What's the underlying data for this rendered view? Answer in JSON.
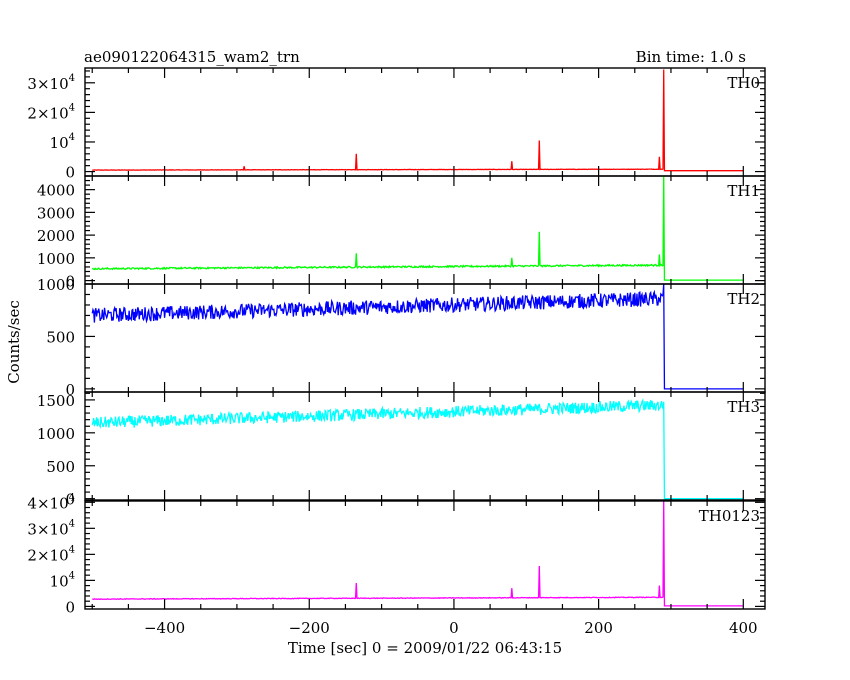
{
  "header": {
    "title": "ae090122064315_wam2_trn",
    "bin_time": "Bin time: 1.0 s"
  },
  "axes": {
    "xlabel": "Time [sec] 0 = 2009/01/22 06:43:15",
    "ylabel": "Counts/sec",
    "xlim": [
      -510,
      430
    ],
    "xticks_major": [
      -400,
      -200,
      0,
      200,
      400
    ],
    "xtick_labels": [
      "−400",
      "−200",
      "0",
      "200",
      "400"
    ]
  },
  "chart_data": {
    "type": "line",
    "x_range": [
      -500,
      400
    ],
    "bin_time_s": 1.0,
    "panels": [
      {
        "name": "TH0",
        "color": "#ff0000",
        "ylim": [
          -1500,
          35000
        ],
        "ticks": [
          {
            "v": 0,
            "main": "0",
            "sup": ""
          },
          {
            "v": 10000,
            "main": "10",
            "sup": "4"
          },
          {
            "v": 20000,
            "main": "2×10",
            "sup": "4"
          },
          {
            "v": 30000,
            "main": "3×10",
            "sup": "4"
          }
        ],
        "baseline_start": 500,
        "baseline_end": 800,
        "noise": 60,
        "end_time": 290,
        "after_level": 300,
        "spikes": [
          {
            "t": -290,
            "v": 1800
          },
          {
            "t": -135,
            "v": 6000
          },
          {
            "t": 80,
            "v": 3500
          },
          {
            "t": 118,
            "v": 10500
          },
          {
            "t": 284,
            "v": 5000
          },
          {
            "t": 290,
            "v": 34500
          }
        ]
      },
      {
        "name": "TH1",
        "color": "#00ff00",
        "ylim": [
          -150,
          4600
        ],
        "ticks": [
          {
            "v": 0,
            "main": "0",
            "sup": ""
          },
          {
            "v": 1000,
            "main": "1000",
            "sup": ""
          },
          {
            "v": 2000,
            "main": "2000",
            "sup": ""
          },
          {
            "v": 3000,
            "main": "3000",
            "sup": ""
          },
          {
            "v": 4000,
            "main": "4000",
            "sup": ""
          }
        ],
        "baseline_start": 520,
        "baseline_end": 680,
        "noise": 35,
        "end_time": 290,
        "after_level": 20,
        "spikes": [
          {
            "t": -135,
            "v": 1200
          },
          {
            "t": 80,
            "v": 1000
          },
          {
            "t": 118,
            "v": 2150
          },
          {
            "t": 284,
            "v": 1150
          },
          {
            "t": 290,
            "v": 4600
          }
        ]
      },
      {
        "name": "TH2",
        "color": "#0000ff",
        "ylim": [
          -30,
          1000
        ],
        "ticks": [
          {
            "v": 0,
            "main": "0",
            "sup": ""
          },
          {
            "v": 500,
            "main": "500",
            "sup": ""
          },
          {
            "v": 1000,
            "main": "1000",
            "sup": ""
          }
        ],
        "baseline_start": 700,
        "baseline_end": 860,
        "noise": 70,
        "end_time": 290,
        "after_level": 0,
        "spikes": [
          {
            "t": 290,
            "v": 1000
          }
        ]
      },
      {
        "name": "TH3",
        "color": "#00ffff",
        "ylim": [
          -20,
          1620
        ],
        "ticks": [
          {
            "v": 0,
            "main": "0",
            "sup": ""
          },
          {
            "v": 500,
            "main": "500",
            "sup": ""
          },
          {
            "v": 1000,
            "main": "1000",
            "sup": ""
          },
          {
            "v": 1500,
            "main": "1500",
            "sup": ""
          }
        ],
        "baseline_start": 1150,
        "baseline_end": 1420,
        "noise": 90,
        "end_time": 290,
        "after_level": 0,
        "spikes": []
      },
      {
        "name": "TH0123",
        "color": "#ff00ff",
        "ylim": [
          -1000,
          40500
        ],
        "ticks": [
          {
            "v": 0,
            "main": "0",
            "sup": ""
          },
          {
            "v": 10000,
            "main": "10",
            "sup": "4"
          },
          {
            "v": 20000,
            "main": "2×10",
            "sup": "4"
          },
          {
            "v": 30000,
            "main": "3×10",
            "sup": "4"
          },
          {
            "v": 40000,
            "main": "4×10",
            "sup": "4"
          }
        ],
        "baseline_start": 2800,
        "baseline_end": 3500,
        "noise": 120,
        "end_time": 290,
        "after_level": 200,
        "spikes": [
          {
            "t": -135,
            "v": 9000
          },
          {
            "t": 80,
            "v": 7000
          },
          {
            "t": 118,
            "v": 15500
          },
          {
            "t": 284,
            "v": 8000
          },
          {
            "t": 290,
            "v": 40500
          }
        ]
      }
    ]
  }
}
